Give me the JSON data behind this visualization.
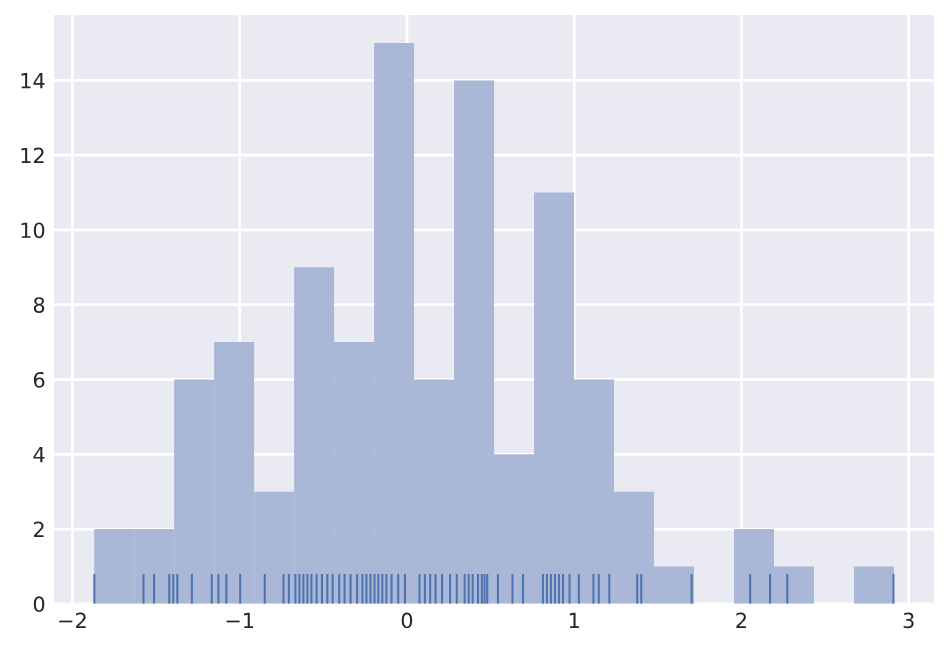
{
  "chart_data": {
    "type": "histogram",
    "xlim": [
      -2.11,
      3.15
    ],
    "ylim": [
      0,
      15.75
    ],
    "xticks": [
      -2,
      -1,
      0,
      1,
      2,
      3
    ],
    "yticks": [
      0,
      2,
      4,
      6,
      8,
      10,
      12,
      14
    ],
    "grid": true,
    "series": [
      {
        "color": "#a9b8d6",
        "bins": [
          -1.87,
          -1.6309,
          -1.3918,
          -1.1527,
          -0.9136,
          -0.6745,
          -0.4354,
          -0.1963,
          0.0428,
          0.2819,
          0.521,
          0.7601,
          0.9992,
          1.2383,
          1.4774,
          1.7165,
          1.9556,
          2.1947,
          2.4338,
          2.6729,
          2.912
        ],
        "values": [
          2,
          2,
          6,
          7,
          3,
          9,
          7,
          15,
          6,
          14,
          4,
          11,
          6,
          3,
          1,
          0,
          2,
          1,
          0,
          1
        ]
      },
      {
        "type": "bar",
        "color": "#4c72b0",
        "x": [
          -1.869,
          -1.575,
          -1.512,
          -1.421,
          -1.397,
          -1.373,
          -1.286,
          -1.167,
          -1.127,
          -1.08,
          -0.997,
          -0.85,
          -0.738,
          -0.706,
          -0.667,
          -0.643,
          -0.619,
          -0.595,
          -0.571,
          -0.54,
          -0.508,
          -0.476,
          -0.444,
          -0.405,
          -0.373,
          -0.337,
          -0.298,
          -0.266,
          -0.242,
          -0.218,
          -0.194,
          -0.171,
          -0.147,
          -0.123,
          -0.092,
          -0.052,
          -0.012,
          0.075,
          0.107,
          0.139,
          0.171,
          0.21,
          0.258,
          0.298,
          0.345,
          0.369,
          0.393,
          0.425,
          0.448,
          0.464,
          0.48,
          0.544,
          0.631,
          0.694,
          0.813,
          0.837,
          0.861,
          0.885,
          0.909,
          0.933,
          0.972,
          1.028,
          1.115,
          1.147,
          1.21,
          1.377,
          1.401,
          1.702,
          2.052,
          2.171,
          2.274,
          2.909
        ],
        "values": [
          0.8,
          0.8,
          0.8,
          0.8,
          0.8,
          0.8,
          0.8,
          0.8,
          0.8,
          0.8,
          0.8,
          0.8,
          0.8,
          0.8,
          0.8,
          0.8,
          0.8,
          0.8,
          0.8,
          0.8,
          0.8,
          0.8,
          0.8,
          0.8,
          0.8,
          0.8,
          0.8,
          0.8,
          0.8,
          0.8,
          0.8,
          0.8,
          0.8,
          0.8,
          0.8,
          0.8,
          0.8,
          0.8,
          0.8,
          0.8,
          0.8,
          0.8,
          0.8,
          0.8,
          0.8,
          0.8,
          0.8,
          0.8,
          0.8,
          0.8,
          0.8,
          0.8,
          0.8,
          0.8,
          0.8,
          0.8,
          0.8,
          0.8,
          0.8,
          0.8,
          0.8,
          0.8,
          0.8,
          0.8,
          0.8,
          0.8,
          0.8,
          0.8,
          0.8,
          0.8,
          0.8,
          0.8
        ]
      }
    ]
  }
}
